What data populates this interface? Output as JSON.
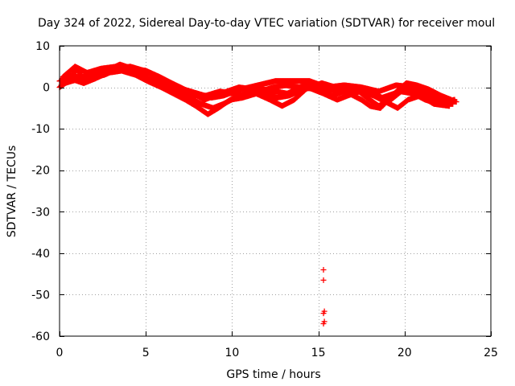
{
  "chart_data": {
    "type": "scatter",
    "title": "Day 324 of 2022, Sidereal Day-to-day VTEC variation (SDTVAR) for receiver moul",
    "xlabel": "GPS time / hours",
    "ylabel": "SDTVAR / TECUs",
    "xlim": [
      0,
      25
    ],
    "ylim": [
      -60,
      10
    ],
    "xticks": [
      0,
      5,
      10,
      15,
      20,
      25
    ],
    "yticks": [
      10,
      0,
      -10,
      -20,
      -30,
      -40,
      -50,
      -60
    ],
    "grid": true,
    "marker": "+",
    "series": [
      {
        "name": "SDTVAR",
        "color": "#ff0000",
        "tracks": [
          [
            [
              0.0,
              0.0
            ],
            [
              0.5,
              1.5
            ],
            [
              1.0,
              4.5
            ],
            [
              1.3,
              2.5
            ],
            [
              1.8,
              3.0
            ],
            [
              2.5,
              4.0
            ],
            [
              3.0,
              4.5
            ],
            [
              3.5,
              5.5
            ],
            [
              4.2,
              4.5
            ],
            [
              5.0,
              4.0
            ],
            [
              5.8,
              2.5
            ],
            [
              6.5,
              1.0
            ],
            [
              7.2,
              -0.5
            ],
            [
              8.0,
              -1.5
            ],
            [
              8.8,
              -2.5
            ],
            [
              9.5,
              -2.0
            ],
            [
              10.5,
              -0.5
            ],
            [
              11.5,
              0.5
            ],
            [
              12.5,
              1.5
            ],
            [
              13.5,
              1.5
            ],
            [
              14.5,
              1.5
            ],
            [
              15.5,
              0.0
            ],
            [
              16.5,
              0.5
            ],
            [
              17.5,
              0.0
            ],
            [
              18.5,
              -1.0
            ],
            [
              19.5,
              0.5
            ],
            [
              20.5,
              0.0
            ],
            [
              21.5,
              -1.5
            ],
            [
              22.5,
              -3.0
            ],
            [
              23.0,
              -3.5
            ]
          ],
          [
            [
              0.0,
              1.5
            ],
            [
              0.8,
              3.0
            ],
            [
              1.5,
              1.5
            ],
            [
              2.2,
              2.5
            ],
            [
              3.0,
              4.0
            ],
            [
              3.8,
              4.0
            ],
            [
              4.5,
              3.5
            ],
            [
              5.2,
              2.0
            ],
            [
              6.0,
              0.5
            ],
            [
              6.8,
              -1.0
            ],
            [
              7.5,
              -2.5
            ],
            [
              8.2,
              -4.0
            ],
            [
              8.9,
              -5.0
            ],
            [
              9.5,
              -4.0
            ],
            [
              10.2,
              -2.5
            ],
            [
              11.0,
              -1.0
            ],
            [
              11.8,
              -0.5
            ],
            [
              12.5,
              -1.0
            ],
            [
              13.2,
              -1.5
            ],
            [
              14.0,
              0.0
            ],
            [
              15.0,
              -0.5
            ],
            [
              15.8,
              -2.0
            ],
            [
              16.5,
              -1.0
            ],
            [
              17.2,
              -0.5
            ],
            [
              17.8,
              -2.5
            ],
            [
              18.5,
              -4.5
            ],
            [
              19.2,
              -3.0
            ],
            [
              19.8,
              -1.0
            ],
            [
              20.5,
              -1.5
            ],
            [
              21.2,
              -3.0
            ],
            [
              22.0,
              -4.0
            ],
            [
              22.8,
              -4.0
            ]
          ],
          [
            [
              0.2,
              2.5
            ],
            [
              0.9,
              5.0
            ],
            [
              1.6,
              3.5
            ],
            [
              2.4,
              4.5
            ],
            [
              3.3,
              5.0
            ],
            [
              4.0,
              4.5
            ],
            [
              4.8,
              4.0
            ],
            [
              5.5,
              3.0
            ],
            [
              6.2,
              1.5
            ],
            [
              7.0,
              0.0
            ],
            [
              7.7,
              -1.5
            ],
            [
              8.4,
              -3.0
            ],
            [
              9.0,
              -2.0
            ],
            [
              9.7,
              -1.0
            ],
            [
              10.4,
              0.0
            ],
            [
              11.2,
              -0.5
            ],
            [
              11.9,
              -1.5
            ],
            [
              12.6,
              -2.5
            ],
            [
              13.3,
              -2.0
            ],
            [
              14.2,
              -0.5
            ],
            [
              15.2,
              1.0
            ],
            [
              16.0,
              0.0
            ],
            [
              16.8,
              -1.5
            ],
            [
              17.5,
              -3.0
            ],
            [
              18.0,
              -4.5
            ],
            [
              18.6,
              -5.0
            ],
            [
              19.3,
              -2.0
            ],
            [
              20.0,
              0.0
            ],
            [
              20.8,
              -1.0
            ],
            [
              21.6,
              -2.5
            ],
            [
              22.4,
              -3.5
            ],
            [
              22.9,
              -3.0
            ]
          ],
          [
            [
              0.1,
              0.5
            ],
            [
              0.7,
              2.0
            ],
            [
              1.4,
              1.0
            ],
            [
              2.0,
              2.0
            ],
            [
              2.8,
              3.5
            ],
            [
              3.6,
              4.0
            ],
            [
              4.4,
              3.0
            ],
            [
              5.1,
              1.5
            ],
            [
              5.9,
              0.0
            ],
            [
              6.6,
              -1.5
            ],
            [
              7.3,
              -3.0
            ],
            [
              7.9,
              -4.5
            ],
            [
              8.6,
              -6.5
            ],
            [
              9.2,
              -5.0
            ],
            [
              9.9,
              -3.0
            ],
            [
              10.6,
              -2.5
            ],
            [
              11.4,
              -1.5
            ],
            [
              12.2,
              -3.0
            ],
            [
              12.9,
              -4.5
            ],
            [
              13.6,
              -3.0
            ],
            [
              14.4,
              0.0
            ],
            [
              15.3,
              -1.5
            ],
            [
              16.1,
              -3.0
            ],
            [
              16.7,
              -2.0
            ],
            [
              17.4,
              -1.0
            ],
            [
              18.2,
              -2.0
            ],
            [
              18.9,
              -3.5
            ],
            [
              19.6,
              -5.0
            ],
            [
              20.2,
              -3.0
            ],
            [
              20.9,
              -2.0
            ],
            [
              21.7,
              -4.0
            ],
            [
              22.6,
              -4.5
            ]
          ],
          [
            [
              0.3,
              1.0
            ],
            [
              1.1,
              2.0
            ],
            [
              1.9,
              2.5
            ],
            [
              2.6,
              3.0
            ],
            [
              3.4,
              4.5
            ],
            [
              4.1,
              5.0
            ],
            [
              4.9,
              4.0
            ],
            [
              5.6,
              2.5
            ],
            [
              6.4,
              0.5
            ],
            [
              7.1,
              -0.5
            ],
            [
              7.8,
              -2.0
            ],
            [
              8.5,
              -2.0
            ],
            [
              9.3,
              -1.0
            ],
            [
              10.0,
              -1.5
            ],
            [
              10.8,
              -2.0
            ],
            [
              11.6,
              -1.0
            ],
            [
              12.4,
              0.0
            ],
            [
              13.1,
              0.5
            ],
            [
              13.9,
              0.0
            ],
            [
              14.7,
              1.0
            ],
            [
              15.6,
              -0.5
            ],
            [
              16.4,
              -1.0
            ],
            [
              17.1,
              0.0
            ],
            [
              17.9,
              -1.0
            ],
            [
              18.7,
              -2.5
            ],
            [
              19.4,
              -1.5
            ],
            [
              20.1,
              1.0
            ],
            [
              20.7,
              0.5
            ],
            [
              21.4,
              -0.5
            ],
            [
              22.1,
              -2.0
            ],
            [
              22.7,
              -3.0
            ]
          ]
        ],
        "points": [
          [
            15.3,
            -44
          ],
          [
            15.3,
            -46.5
          ],
          [
            15.35,
            -54
          ],
          [
            15.3,
            -54.5
          ],
          [
            15.3,
            -57
          ],
          [
            15.35,
            -56.5
          ]
        ]
      }
    ]
  }
}
